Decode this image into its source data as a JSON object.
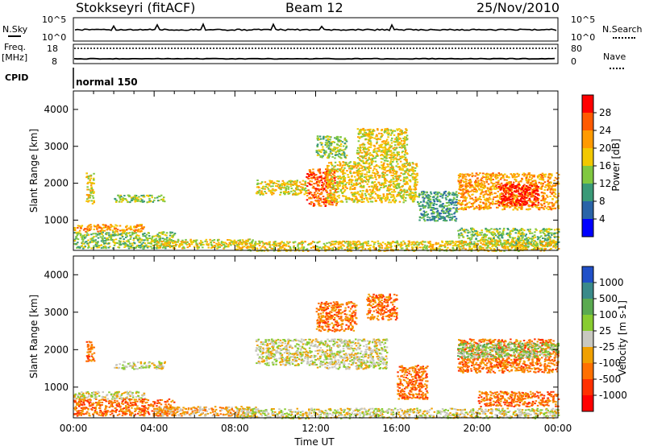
{
  "header": {
    "station": "Stokkseyri (fitACF)",
    "beam": "Beam 12",
    "date": "25/Nov/2010"
  },
  "aux": {
    "nsky_label": "N.Sky",
    "nsearch_label": "N.Search",
    "count_scale": [
      "10^5",
      "10^0"
    ],
    "freq_label": "Freq.",
    "freq_unit": "[MHz]",
    "freq_scale": [
      "18",
      "8"
    ],
    "nave_label": "Nave",
    "nave_scale": [
      "80",
      "0"
    ],
    "cpid_label": "CPID",
    "cpid_value": "normal 150"
  },
  "chart_data": [
    {
      "type": "heatmap",
      "name": "power",
      "ylabel": "Slant Range [km]",
      "xlabel": "",
      "x_range": [
        "00:00",
        "24:00"
      ],
      "ylim": [
        180,
        4500
      ],
      "y_ticks": [
        1000,
        2000,
        3000,
        4000
      ],
      "colorbar": {
        "label": "Power [dB]",
        "ticks": [
          "28",
          "24",
          "20",
          "16",
          "12",
          "8",
          "4"
        ],
        "colors": [
          "#ff0000",
          "#ff5a00",
          "#ff9a00",
          "#f2c800",
          "#80c840",
          "#3a9a78",
          "#2a64a8",
          "#0000ff"
        ]
      },
      "scatter_regions": [
        {
          "t": [
            0.6,
            1.0
          ],
          "r": [
            1450,
            2300
          ],
          "level": 3
        },
        {
          "t": [
            2.0,
            4.5
          ],
          "r": [
            1500,
            1700
          ],
          "level": 4
        },
        {
          "t": [
            0.0,
            3.5
          ],
          "r": [
            700,
            900
          ],
          "level": 2
        },
        {
          "t": [
            0.0,
            5.0
          ],
          "r": [
            250,
            700
          ],
          "level": 4
        },
        {
          "t": [
            4.0,
            9.0
          ],
          "r": [
            250,
            500
          ],
          "level": 3
        },
        {
          "t": [
            9.0,
            11.5
          ],
          "r": [
            1700,
            2100
          ],
          "level": 3
        },
        {
          "t": [
            11.5,
            13.0
          ],
          "r": [
            1400,
            2400
          ],
          "level": 1
        },
        {
          "t": [
            12.5,
            17.0
          ],
          "r": [
            1500,
            2600
          ],
          "level": 3
        },
        {
          "t": [
            14.0,
            16.5
          ],
          "r": [
            2600,
            3500
          ],
          "level": 3
        },
        {
          "t": [
            12.0,
            13.5
          ],
          "r": [
            2700,
            3300
          ],
          "level": 4
        },
        {
          "t": [
            17.0,
            19.0
          ],
          "r": [
            1000,
            1800
          ],
          "level": 5
        },
        {
          "t": [
            19.0,
            24.0
          ],
          "r": [
            1300,
            2300
          ],
          "level": 2
        },
        {
          "t": [
            21.0,
            23.0
          ],
          "r": [
            1400,
            2000
          ],
          "level": 0
        },
        {
          "t": [
            19.0,
            24.0
          ],
          "r": [
            300,
            800
          ],
          "level": 4
        },
        {
          "t": [
            8.0,
            24.0
          ],
          "r": [
            180,
            450
          ],
          "level": 3
        }
      ]
    },
    {
      "type": "heatmap",
      "name": "velocity",
      "ylabel": "Slant Range [km]",
      "xlabel": "Time UT",
      "x_range": [
        "00:00",
        "24:00"
      ],
      "x_ticks": [
        "00:00",
        "04:00",
        "08:00",
        "12:00",
        "16:00",
        "20:00",
        "00:00"
      ],
      "ylim": [
        180,
        4500
      ],
      "y_ticks": [
        1000,
        2000,
        3000,
        4000
      ],
      "colorbar": {
        "label": "Velocity [m s-1]",
        "ticks": [
          "1000",
          "500",
          "100",
          "25",
          "-25",
          "-100",
          "-500",
          "-1000"
        ],
        "colors": [
          "#2050c8",
          "#3a8a8a",
          "#5aaa50",
          "#88cc30",
          "#c8c8c0",
          "#f0a000",
          "#ff7000",
          "#ff3000",
          "#ff0000"
        ]
      },
      "scatter_regions": [
        {
          "t": [
            0.6,
            1.0
          ],
          "r": [
            1700,
            2300
          ],
          "level": 6
        },
        {
          "t": [
            2.0,
            4.5
          ],
          "r": [
            1500,
            1700
          ],
          "level": 4
        },
        {
          "t": [
            0.0,
            3.5
          ],
          "r": [
            700,
            900
          ],
          "level": 4
        },
        {
          "t": [
            0.0,
            5.0
          ],
          "r": [
            250,
            700
          ],
          "level": 6
        },
        {
          "t": [
            4.0,
            9.0
          ],
          "r": [
            250,
            500
          ],
          "level": 5
        },
        {
          "t": [
            9.0,
            12.0
          ],
          "r": [
            1600,
            2300
          ],
          "level": 4
        },
        {
          "t": [
            12.0,
            15.5
          ],
          "r": [
            1500,
            2300
          ],
          "level": 4
        },
        {
          "t": [
            12.0,
            14.0
          ],
          "r": [
            2500,
            3300
          ],
          "level": 6
        },
        {
          "t": [
            14.5,
            16.0
          ],
          "r": [
            2800,
            3500
          ],
          "level": 6
        },
        {
          "t": [
            16.0,
            17.5
          ],
          "r": [
            700,
            1600
          ],
          "level": 6
        },
        {
          "t": [
            19.0,
            24.0
          ],
          "r": [
            1400,
            2300
          ],
          "level": 6
        },
        {
          "t": [
            19.0,
            24.0
          ],
          "r": [
            1800,
            2200
          ],
          "level": 3
        },
        {
          "t": [
            20.0,
            24.0
          ],
          "r": [
            500,
            900
          ],
          "level": 6
        },
        {
          "t": [
            8.0,
            24.0
          ],
          "r": [
            180,
            450
          ],
          "level": 4
        }
      ]
    }
  ]
}
